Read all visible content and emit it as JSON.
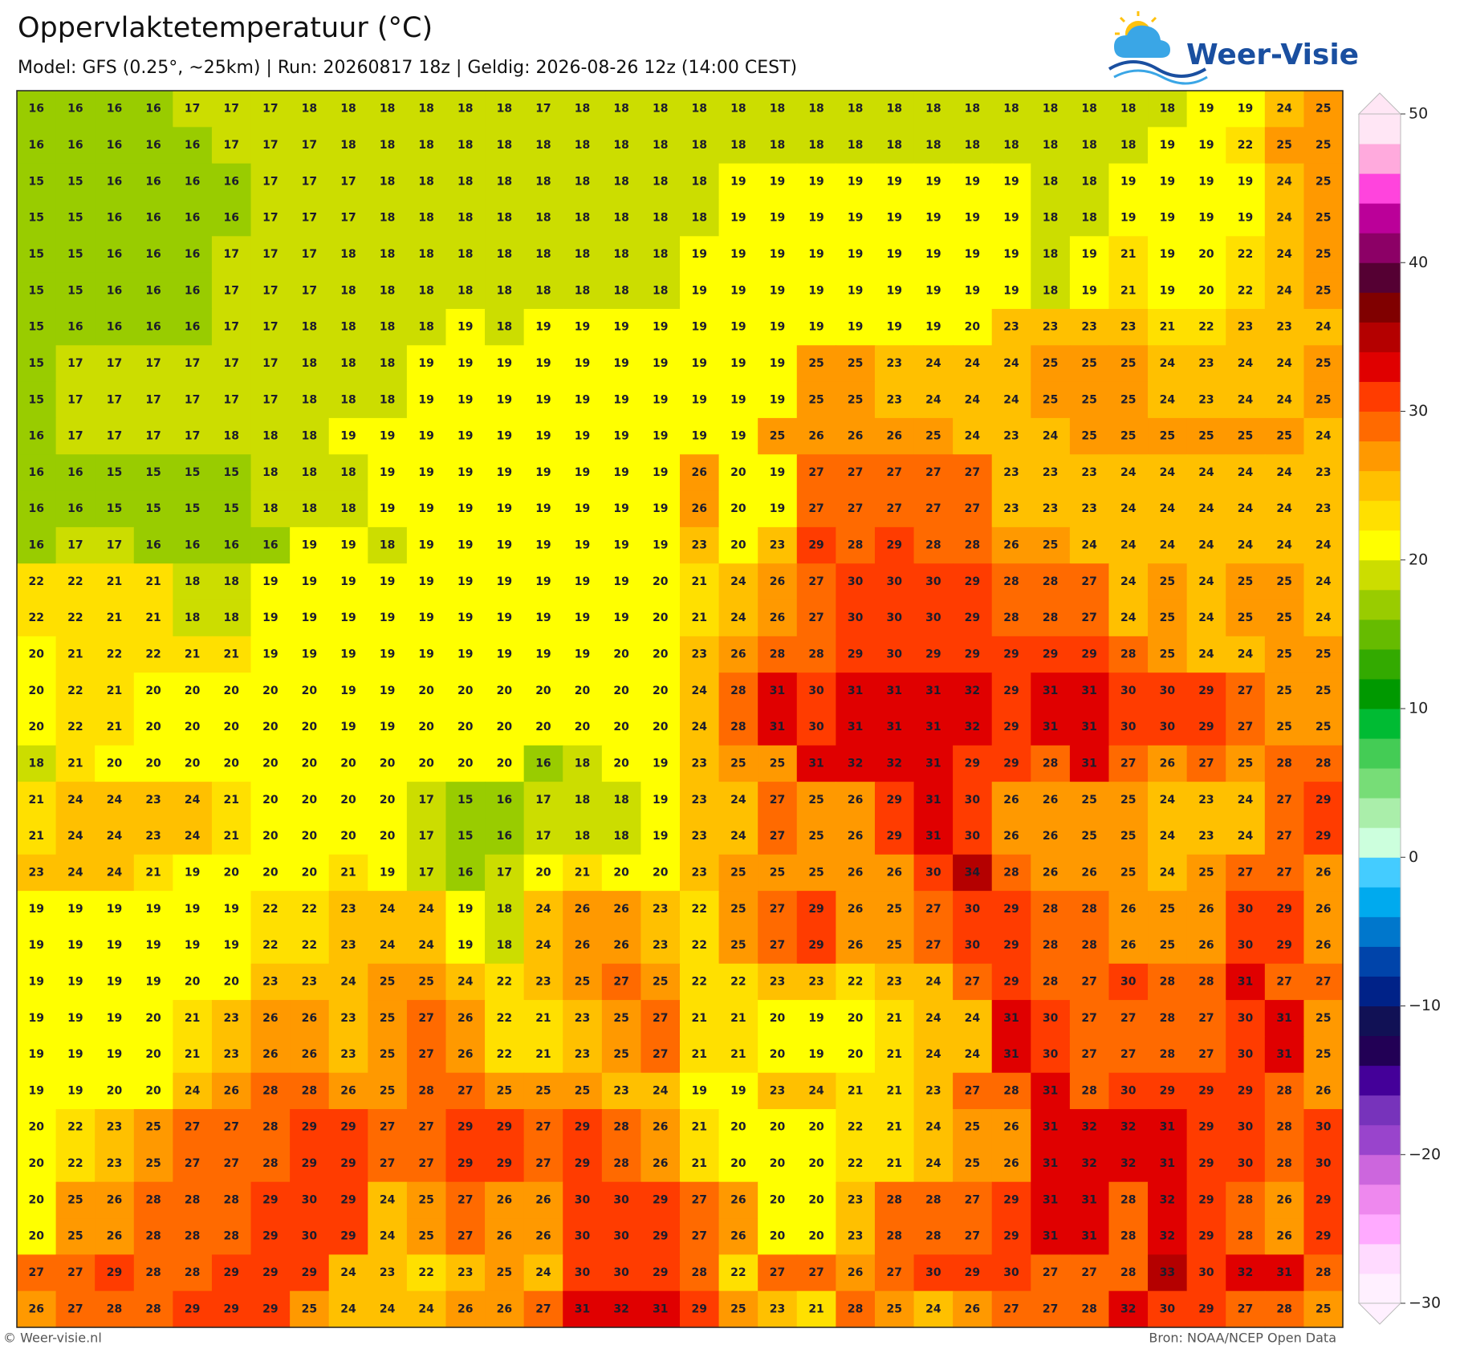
{
  "map": {
    "title": "Oppervlaktetemperatuur (°C)",
    "subtitle": "Model: GFS (0.25°, ~25km)  |  Run: 20260817 18z  |  Geldig: 2026-08-26 12z (14:00 CEST)",
    "values": [
      [
        16,
        16,
        16,
        16,
        17,
        17,
        17,
        18,
        18,
        18,
        18,
        18,
        18,
        17,
        18,
        18,
        18,
        18,
        18,
        18,
        18,
        18,
        18,
        18,
        18,
        18,
        18,
        18,
        18,
        18,
        19,
        19,
        24,
        25
      ],
      [
        16,
        16,
        16,
        16,
        16,
        17,
        17,
        17,
        18,
        18,
        18,
        18,
        18,
        18,
        18,
        18,
        18,
        18,
        18,
        18,
        18,
        18,
        18,
        18,
        18,
        18,
        18,
        18,
        18,
        19,
        19,
        22,
        25,
        25
      ],
      [
        15,
        15,
        16,
        16,
        16,
        16,
        17,
        17,
        17,
        18,
        18,
        18,
        18,
        18,
        18,
        18,
        18,
        18,
        19,
        19,
        19,
        19,
        19,
        19,
        19,
        19,
        18,
        18,
        19,
        19,
        19,
        19,
        24,
        25
      ],
      [
        15,
        15,
        16,
        16,
        16,
        16,
        17,
        17,
        17,
        18,
        18,
        18,
        18,
        18,
        18,
        18,
        18,
        18,
        19,
        19,
        19,
        19,
        19,
        19,
        19,
        19,
        18,
        18,
        19,
        19,
        19,
        19,
        24,
        25
      ],
      [
        15,
        15,
        16,
        16,
        16,
        17,
        17,
        17,
        18,
        18,
        18,
        18,
        18,
        18,
        18,
        18,
        18,
        19,
        19,
        19,
        19,
        19,
        19,
        19,
        19,
        19,
        18,
        19,
        21,
        19,
        20,
        22,
        24,
        25
      ],
      [
        15,
        15,
        16,
        16,
        16,
        17,
        17,
        17,
        18,
        18,
        18,
        18,
        18,
        18,
        18,
        18,
        18,
        19,
        19,
        19,
        19,
        19,
        19,
        19,
        19,
        19,
        18,
        19,
        21,
        19,
        20,
        22,
        24,
        25
      ],
      [
        15,
        16,
        16,
        16,
        16,
        17,
        17,
        18,
        18,
        18,
        18,
        19,
        18,
        19,
        19,
        19,
        19,
        19,
        19,
        19,
        19,
        19,
        19,
        19,
        20,
        23,
        23,
        23,
        23,
        21,
        22,
        23,
        23,
        24
      ],
      [
        15,
        17,
        17,
        17,
        17,
        17,
        17,
        18,
        18,
        18,
        19,
        19,
        19,
        19,
        19,
        19,
        19,
        19,
        19,
        19,
        25,
        25,
        23,
        24,
        24,
        24,
        25,
        25,
        25,
        24,
        23,
        24,
        24,
        25
      ],
      [
        15,
        17,
        17,
        17,
        17,
        17,
        17,
        18,
        18,
        18,
        19,
        19,
        19,
        19,
        19,
        19,
        19,
        19,
        19,
        19,
        25,
        25,
        23,
        24,
        24,
        24,
        25,
        25,
        25,
        24,
        23,
        24,
        24,
        25
      ],
      [
        16,
        17,
        17,
        17,
        17,
        18,
        18,
        18,
        19,
        19,
        19,
        19,
        19,
        19,
        19,
        19,
        19,
        19,
        19,
        25,
        26,
        26,
        26,
        25,
        24,
        23,
        24,
        25,
        25,
        25,
        25,
        25,
        25,
        24
      ],
      [
        16,
        16,
        15,
        15,
        15,
        15,
        18,
        18,
        18,
        19,
        19,
        19,
        19,
        19,
        19,
        19,
        19,
        26,
        20,
        19,
        27,
        27,
        27,
        27,
        27,
        23,
        23,
        23,
        24,
        24,
        24,
        24,
        24,
        23
      ],
      [
        16,
        16,
        15,
        15,
        15,
        15,
        18,
        18,
        18,
        19,
        19,
        19,
        19,
        19,
        19,
        19,
        19,
        26,
        20,
        19,
        27,
        27,
        27,
        27,
        27,
        23,
        23,
        23,
        24,
        24,
        24,
        24,
        24,
        23
      ],
      [
        16,
        17,
        17,
        16,
        16,
        16,
        16,
        19,
        19,
        18,
        19,
        19,
        19,
        19,
        19,
        19,
        19,
        23,
        20,
        23,
        29,
        28,
        29,
        28,
        28,
        26,
        25,
        24,
        24,
        24,
        24,
        24,
        24,
        24
      ],
      [
        22,
        22,
        21,
        21,
        18,
        18,
        19,
        19,
        19,
        19,
        19,
        19,
        19,
        19,
        19,
        19,
        20,
        21,
        24,
        26,
        27,
        30,
        30,
        30,
        29,
        28,
        28,
        27,
        24,
        25,
        24,
        25,
        25,
        24
      ],
      [
        22,
        22,
        21,
        21,
        18,
        18,
        19,
        19,
        19,
        19,
        19,
        19,
        19,
        19,
        19,
        19,
        20,
        21,
        24,
        26,
        27,
        30,
        30,
        30,
        29,
        28,
        28,
        27,
        24,
        25,
        24,
        25,
        25,
        24
      ],
      [
        20,
        21,
        22,
        22,
        21,
        21,
        19,
        19,
        19,
        19,
        19,
        19,
        19,
        19,
        19,
        20,
        20,
        23,
        26,
        28,
        28,
        29,
        30,
        29,
        29,
        29,
        29,
        29,
        28,
        25,
        24,
        24,
        25,
        25
      ],
      [
        20,
        22,
        21,
        20,
        20,
        20,
        20,
        20,
        19,
        19,
        20,
        20,
        20,
        20,
        20,
        20,
        20,
        24,
        28,
        31,
        30,
        31,
        31,
        31,
        32,
        29,
        31,
        31,
        30,
        30,
        29,
        27,
        25,
        25
      ],
      [
        20,
        22,
        21,
        20,
        20,
        20,
        20,
        20,
        19,
        19,
        20,
        20,
        20,
        20,
        20,
        20,
        20,
        24,
        28,
        31,
        30,
        31,
        31,
        31,
        32,
        29,
        31,
        31,
        30,
        30,
        29,
        27,
        25,
        25
      ],
      [
        18,
        21,
        20,
        20,
        20,
        20,
        20,
        20,
        20,
        20,
        20,
        20,
        20,
        16,
        18,
        20,
        19,
        23,
        25,
        25,
        31,
        32,
        32,
        31,
        29,
        29,
        28,
        31,
        27,
        26,
        27,
        25,
        28,
        28
      ],
      [
        21,
        24,
        24,
        23,
        24,
        21,
        20,
        20,
        20,
        20,
        17,
        15,
        16,
        17,
        18,
        18,
        19,
        23,
        24,
        27,
        25,
        26,
        29,
        31,
        30,
        26,
        26,
        25,
        25,
        24,
        23,
        24,
        27,
        29
      ],
      [
        21,
        24,
        24,
        23,
        24,
        21,
        20,
        20,
        20,
        20,
        17,
        15,
        16,
        17,
        18,
        18,
        19,
        23,
        24,
        27,
        25,
        26,
        29,
        31,
        30,
        26,
        26,
        25,
        25,
        24,
        23,
        24,
        27,
        29
      ],
      [
        23,
        24,
        24,
        21,
        19,
        20,
        20,
        20,
        21,
        19,
        17,
        16,
        17,
        20,
        21,
        20,
        20,
        23,
        25,
        25,
        25,
        26,
        26,
        30,
        34,
        28,
        26,
        26,
        25,
        24,
        25,
        27,
        27,
        26
      ],
      [
        19,
        19,
        19,
        19,
        19,
        19,
        22,
        22,
        23,
        24,
        24,
        19,
        18,
        24,
        26,
        26,
        23,
        22,
        25,
        27,
        29,
        26,
        25,
        27,
        30,
        29,
        28,
        28,
        26,
        25,
        26,
        30,
        29,
        26
      ],
      [
        19,
        19,
        19,
        19,
        19,
        19,
        22,
        22,
        23,
        24,
        24,
        19,
        18,
        24,
        26,
        26,
        23,
        22,
        25,
        27,
        29,
        26,
        25,
        27,
        30,
        29,
        28,
        28,
        26,
        25,
        26,
        30,
        29,
        26
      ],
      [
        19,
        19,
        19,
        19,
        20,
        20,
        23,
        23,
        24,
        25,
        25,
        24,
        22,
        23,
        25,
        27,
        25,
        22,
        22,
        23,
        23,
        22,
        23,
        24,
        27,
        29,
        28,
        27,
        30,
        28,
        28,
        31,
        27,
        27
      ],
      [
        19,
        19,
        19,
        20,
        21,
        23,
        26,
        26,
        23,
        25,
        27,
        26,
        22,
        21,
        23,
        25,
        27,
        21,
        21,
        20,
        19,
        20,
        21,
        24,
        24,
        31,
        30,
        27,
        27,
        28,
        27,
        30,
        31,
        25
      ],
      [
        19,
        19,
        19,
        20,
        21,
        23,
        26,
        26,
        23,
        25,
        27,
        26,
        22,
        21,
        23,
        25,
        27,
        21,
        21,
        20,
        19,
        20,
        21,
        24,
        24,
        31,
        30,
        27,
        27,
        28,
        27,
        30,
        31,
        25
      ],
      [
        19,
        19,
        20,
        20,
        24,
        26,
        28,
        28,
        26,
        25,
        28,
        27,
        25,
        25,
        25,
        23,
        24,
        19,
        19,
        23,
        24,
        21,
        21,
        23,
        27,
        28,
        31,
        28,
        30,
        29,
        29,
        29,
        28,
        26
      ],
      [
        20,
        22,
        23,
        25,
        27,
        27,
        28,
        29,
        29,
        27,
        27,
        29,
        29,
        27,
        29,
        28,
        26,
        21,
        20,
        20,
        20,
        22,
        21,
        24,
        25,
        26,
        31,
        32,
        32,
        31,
        29,
        30,
        28,
        30
      ],
      [
        20,
        22,
        23,
        25,
        27,
        27,
        28,
        29,
        29,
        27,
        27,
        29,
        29,
        27,
        29,
        28,
        26,
        21,
        20,
        20,
        20,
        22,
        21,
        24,
        25,
        26,
        31,
        32,
        32,
        31,
        29,
        30,
        28,
        30
      ],
      [
        20,
        25,
        26,
        28,
        28,
        28,
        29,
        30,
        29,
        24,
        25,
        27,
        26,
        26,
        30,
        30,
        29,
        27,
        26,
        20,
        20,
        23,
        28,
        28,
        27,
        29,
        31,
        31,
        28,
        32,
        29,
        28,
        26,
        29
      ],
      [
        20,
        25,
        26,
        28,
        28,
        28,
        29,
        30,
        29,
        24,
        25,
        27,
        26,
        26,
        30,
        30,
        29,
        27,
        26,
        20,
        20,
        23,
        28,
        28,
        27,
        29,
        31,
        31,
        28,
        32,
        29,
        28,
        26,
        29
      ],
      [
        27,
        27,
        29,
        28,
        28,
        29,
        29,
        29,
        24,
        23,
        22,
        23,
        25,
        24,
        30,
        30,
        29,
        28,
        22,
        27,
        27,
        26,
        27,
        30,
        29,
        30,
        27,
        27,
        28,
        33,
        30,
        32,
        31,
        28
      ],
      [
        26,
        27,
        28,
        28,
        29,
        29,
        29,
        25,
        24,
        24,
        24,
        26,
        26,
        27,
        31,
        32,
        31,
        29,
        25,
        23,
        21,
        28,
        25,
        24,
        26,
        27,
        27,
        28,
        32,
        30,
        29,
        27,
        28,
        25
      ]
    ]
  },
  "colorbar": {
    "lim": [
      -30,
      50
    ],
    "ticks": [
      50,
      40,
      30,
      20,
      10,
      0,
      {
        "value": -10,
        "label": "−10"
      },
      {
        "value": -20,
        "label": "−20"
      },
      {
        "value": -30,
        "label": "−30"
      }
    ],
    "colors": [
      "#fff0ff",
      "#ffdaff",
      "#ffaaff",
      "#ee88ee",
      "#cc66dd",
      "#9944cc",
      "#7733bb",
      "#440099",
      "#220055",
      "#111155",
      "#002288",
      "#0044aa",
      "#0077cc",
      "#00aaee",
      "#44ccff",
      "#ccffdd",
      "#aaeeaa",
      "#77dd77",
      "#44cc55",
      "#00bb33",
      "#009900",
      "#33aa00",
      "#66bb00",
      "#99cc00",
      "#ccdd00",
      "#ffff00",
      "#ffe000",
      "#ffc000",
      "#ff9900",
      "#ff6a00",
      "#ff3c00",
      "#e00000",
      "#b40000",
      "#800000",
      "#550033",
      "#8c0066",
      "#bb0099",
      "#ff44dd",
      "#ffaadd",
      "#ffe6f5"
    ]
  },
  "logo": "Weer-Visie",
  "footer": {
    "left": "© Weer-visie.nl",
    "right": "Bron: NOAA/NCEP Open Data"
  }
}
